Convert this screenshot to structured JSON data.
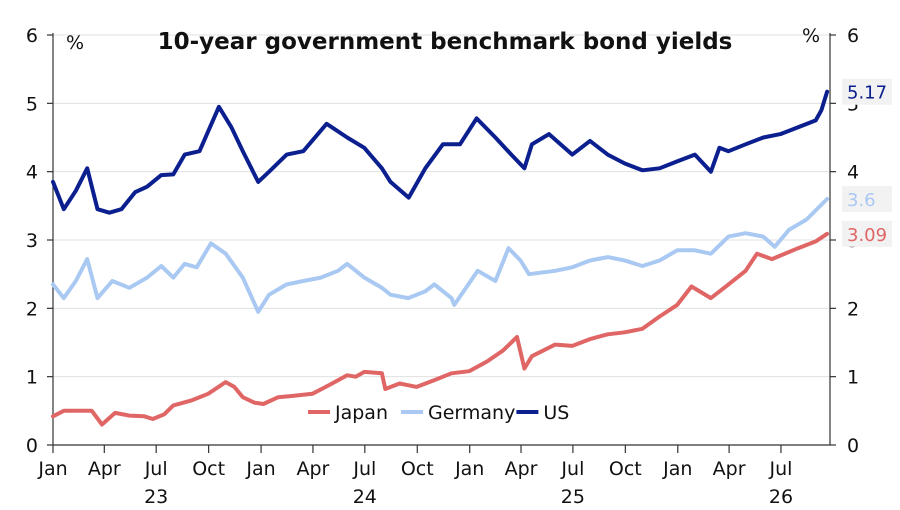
{
  "chart_data": {
    "type": "line",
    "title": "10-year government benchmark bond yields",
    "ylabel_left": "%",
    "ylabel_right": "%",
    "ylim": [
      0,
      6
    ],
    "y_ticks": [
      0,
      1,
      2,
      3,
      4,
      5,
      6
    ],
    "x_ticks": [
      "Jan",
      "Apr",
      "Jul",
      "Oct",
      "Jan",
      "Apr",
      "Jul",
      "Oct",
      "Jan",
      "Apr",
      "Jul",
      "Oct",
      "Jan",
      "Apr",
      "Jul"
    ],
    "x_tick_dates": [
      "2023-01",
      "2023-04",
      "2023-07",
      "2023-10",
      "2024-01",
      "2024-04",
      "2024-07",
      "2024-10",
      "2025-01",
      "2025-04",
      "2025-07",
      "2025-10",
      "2026-01",
      "2026-04",
      "2026-07"
    ],
    "years": [
      {
        "label": "23",
        "date": "2023-07"
      },
      {
        "label": "24",
        "date": "2024-07"
      },
      {
        "label": "25",
        "date": "2025-07"
      },
      {
        "label": "26",
        "date": "2026-07"
      }
    ],
    "grid": true,
    "legend_position": "bottom-center",
    "series": [
      {
        "name": "Japan",
        "color": "#e06666",
        "end_label": "3.09",
        "points": [
          [
            "2023-01-01",
            0.42
          ],
          [
            "2023-01-20",
            0.5
          ],
          [
            "2023-02-15",
            0.5
          ],
          [
            "2023-03-10",
            0.5
          ],
          [
            "2023-03-28",
            0.3
          ],
          [
            "2023-04-20",
            0.47
          ],
          [
            "2023-05-15",
            0.43
          ],
          [
            "2023-06-10",
            0.42
          ],
          [
            "2023-06-25",
            0.38
          ],
          [
            "2023-07-15",
            0.45
          ],
          [
            "2023-07-31",
            0.58
          ],
          [
            "2023-08-31",
            0.65
          ],
          [
            "2023-09-30",
            0.75
          ],
          [
            "2023-10-31",
            0.92
          ],
          [
            "2023-11-15",
            0.85
          ],
          [
            "2023-11-30",
            0.7
          ],
          [
            "2023-12-20",
            0.62
          ],
          [
            "2024-01-05",
            0.6
          ],
          [
            "2024-01-31",
            0.7
          ],
          [
            "2024-02-28",
            0.72
          ],
          [
            "2024-03-31",
            0.75
          ],
          [
            "2024-04-30",
            0.88
          ],
          [
            "2024-05-31",
            1.02
          ],
          [
            "2024-06-15",
            1.0
          ],
          [
            "2024-06-30",
            1.07
          ],
          [
            "2024-07-31",
            1.05
          ],
          [
            "2024-08-06",
            0.82
          ],
          [
            "2024-08-31",
            0.9
          ],
          [
            "2024-09-30",
            0.85
          ],
          [
            "2024-10-31",
            0.95
          ],
          [
            "2024-11-30",
            1.05
          ],
          [
            "2024-12-31",
            1.08
          ],
          [
            "2025-01-31",
            1.22
          ],
          [
            "2025-02-28",
            1.38
          ],
          [
            "2025-03-25",
            1.58
          ],
          [
            "2025-04-07",
            1.12
          ],
          [
            "2025-04-20",
            1.3
          ],
          [
            "2025-05-31",
            1.47
          ],
          [
            "2025-06-30",
            1.45
          ],
          [
            "2025-07-31",
            1.55
          ],
          [
            "2025-08-31",
            1.62
          ],
          [
            "2025-09-30",
            1.65
          ],
          [
            "2025-10-31",
            1.7
          ],
          [
            "2025-11-30",
            1.88
          ],
          [
            "2025-12-31",
            2.05
          ],
          [
            "2026-01-25",
            2.32
          ],
          [
            "2026-02-28",
            2.15
          ],
          [
            "2026-03-31",
            2.35
          ],
          [
            "2026-04-30",
            2.55
          ],
          [
            "2026-05-20",
            2.8
          ],
          [
            "2026-06-15",
            2.72
          ],
          [
            "2026-07-31",
            2.88
          ],
          [
            "2026-08-31",
            2.98
          ],
          [
            "2026-09-20",
            3.09
          ]
        ]
      },
      {
        "name": "Germany",
        "color": "#a9c9f2",
        "end_label": "3.6",
        "points": [
          [
            "2023-01-01",
            2.35
          ],
          [
            "2023-01-20",
            2.15
          ],
          [
            "2023-02-10",
            2.4
          ],
          [
            "2023-03-02",
            2.72
          ],
          [
            "2023-03-20",
            2.15
          ],
          [
            "2023-04-15",
            2.4
          ],
          [
            "2023-05-15",
            2.3
          ],
          [
            "2023-06-15",
            2.45
          ],
          [
            "2023-07-10",
            2.62
          ],
          [
            "2023-07-31",
            2.45
          ],
          [
            "2023-08-20",
            2.65
          ],
          [
            "2023-09-10",
            2.6
          ],
          [
            "2023-10-05",
            2.95
          ],
          [
            "2023-10-31",
            2.8
          ],
          [
            "2023-11-30",
            2.45
          ],
          [
            "2023-12-27",
            1.95
          ],
          [
            "2024-01-15",
            2.2
          ],
          [
            "2024-02-15",
            2.35
          ],
          [
            "2024-03-15",
            2.4
          ],
          [
            "2024-04-15",
            2.45
          ],
          [
            "2024-05-15",
            2.55
          ],
          [
            "2024-05-31",
            2.65
          ],
          [
            "2024-06-30",
            2.45
          ],
          [
            "2024-07-31",
            2.3
          ],
          [
            "2024-08-15",
            2.2
          ],
          [
            "2024-09-15",
            2.15
          ],
          [
            "2024-10-15",
            2.25
          ],
          [
            "2024-10-31",
            2.35
          ],
          [
            "2024-11-30",
            2.15
          ],
          [
            "2024-12-05",
            2.05
          ],
          [
            "2025-01-15",
            2.55
          ],
          [
            "2025-02-15",
            2.4
          ],
          [
            "2025-03-10",
            2.88
          ],
          [
            "2025-03-31",
            2.7
          ],
          [
            "2025-04-15",
            2.5
          ],
          [
            "2025-05-31",
            2.55
          ],
          [
            "2025-06-30",
            2.6
          ],
          [
            "2025-07-31",
            2.7
          ],
          [
            "2025-08-31",
            2.75
          ],
          [
            "2025-09-30",
            2.7
          ],
          [
            "2025-10-31",
            2.62
          ],
          [
            "2025-11-30",
            2.7
          ],
          [
            "2025-12-31",
            2.85
          ],
          [
            "2026-01-31",
            2.85
          ],
          [
            "2026-02-28",
            2.8
          ],
          [
            "2026-03-31",
            3.05
          ],
          [
            "2026-04-30",
            3.1
          ],
          [
            "2026-05-31",
            3.05
          ],
          [
            "2026-06-20",
            2.9
          ],
          [
            "2026-07-15",
            3.15
          ],
          [
            "2026-08-15",
            3.3
          ],
          [
            "2026-09-20",
            3.6
          ]
        ]
      },
      {
        "name": "US",
        "color": "#0b1f8f",
        "end_label": "5.17",
        "points": [
          [
            "2023-01-01",
            3.85
          ],
          [
            "2023-01-20",
            3.45
          ],
          [
            "2023-02-10",
            3.72
          ],
          [
            "2023-03-02",
            4.05
          ],
          [
            "2023-03-20",
            3.45
          ],
          [
            "2023-04-10",
            3.4
          ],
          [
            "2023-05-01",
            3.45
          ],
          [
            "2023-05-25",
            3.7
          ],
          [
            "2023-06-15",
            3.78
          ],
          [
            "2023-07-10",
            3.95
          ],
          [
            "2023-07-31",
            3.96
          ],
          [
            "2023-08-20",
            4.25
          ],
          [
            "2023-09-15",
            4.3
          ],
          [
            "2023-10-19",
            4.95
          ],
          [
            "2023-11-10",
            4.65
          ],
          [
            "2023-11-30",
            4.3
          ],
          [
            "2023-12-27",
            3.85
          ],
          [
            "2024-01-15",
            4.0
          ],
          [
            "2024-02-15",
            4.25
          ],
          [
            "2024-03-15",
            4.3
          ],
          [
            "2024-04-25",
            4.7
          ],
          [
            "2024-05-31",
            4.5
          ],
          [
            "2024-06-30",
            4.35
          ],
          [
            "2024-07-31",
            4.05
          ],
          [
            "2024-08-15",
            3.85
          ],
          [
            "2024-09-16",
            3.62
          ],
          [
            "2024-10-15",
            4.05
          ],
          [
            "2024-11-15",
            4.4
          ],
          [
            "2024-12-15",
            4.4
          ],
          [
            "2025-01-13",
            4.78
          ],
          [
            "2025-02-15",
            4.5
          ],
          [
            "2025-03-15",
            4.25
          ],
          [
            "2025-04-07",
            4.05
          ],
          [
            "2025-04-20",
            4.4
          ],
          [
            "2025-05-20",
            4.55
          ],
          [
            "2025-06-30",
            4.25
          ],
          [
            "2025-07-31",
            4.45
          ],
          [
            "2025-08-31",
            4.25
          ],
          [
            "2025-09-30",
            4.12
          ],
          [
            "2025-10-31",
            4.02
          ],
          [
            "2025-11-30",
            4.05
          ],
          [
            "2025-12-31",
            4.15
          ],
          [
            "2026-01-31",
            4.25
          ],
          [
            "2026-02-28",
            4.0
          ],
          [
            "2026-03-15",
            4.35
          ],
          [
            "2026-03-31",
            4.3
          ],
          [
            "2026-04-30",
            4.4
          ],
          [
            "2026-05-31",
            4.5
          ],
          [
            "2026-06-30",
            4.55
          ],
          [
            "2026-07-31",
            4.65
          ],
          [
            "2026-08-31",
            4.75
          ],
          [
            "2026-09-10",
            4.9
          ],
          [
            "2026-09-20",
            5.17
          ]
        ]
      }
    ]
  }
}
